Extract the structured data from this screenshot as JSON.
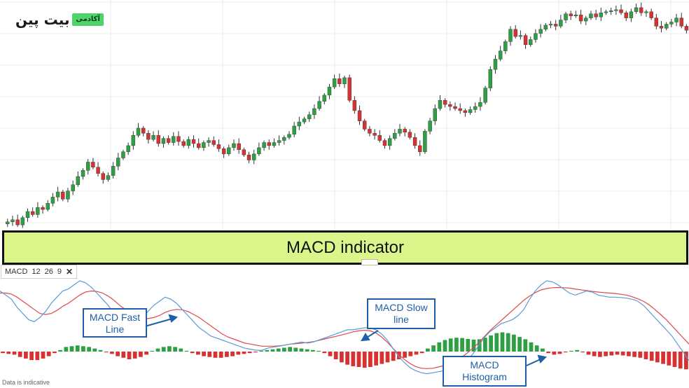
{
  "brand": {
    "name": "بیت پین",
    "badge": "آکادمی"
  },
  "banner": {
    "label": "MACD indicator"
  },
  "indicator": {
    "name": "MACD",
    "fast": "12",
    "slow": "26",
    "signal": "9",
    "close": "✕"
  },
  "callouts": {
    "fast_line": "MACD Fast Line",
    "slow_line": "MACD Slow line",
    "histogram": "MACD Histogram"
  },
  "footer": {
    "note": "Data is indicative"
  },
  "colors": {
    "up": "#2ea043",
    "down": "#d63232",
    "fast": "#5b9bd5",
    "slow": "#e04848",
    "callout": "#1f5fa8",
    "banner": "#dcf58a"
  },
  "chart_data": [
    {
      "type": "candlestick",
      "series": [
        {
          "name": "price",
          "close": [
            400,
            402,
            404,
            399,
            406,
            412,
            409,
            416,
            414,
            420,
            426,
            431,
            424,
            432,
            438,
            446,
            452,
            460,
            455,
            449,
            443,
            447,
            456,
            464,
            470,
            476,
            486,
            493,
            488,
            482,
            486,
            478,
            483,
            479,
            485,
            480,
            476,
            482,
            478,
            474,
            479,
            481,
            477,
            473,
            468,
            474,
            478,
            472,
            467,
            462,
            468,
            474,
            479,
            476,
            479,
            481,
            484,
            487,
            495,
            499,
            502,
            506,
            512,
            519,
            525,
            533,
            541,
            536,
            542,
            520,
            510,
            500,
            492,
            488,
            486,
            481,
            476,
            483,
            488,
            492,
            489,
            484,
            476,
            470,
            490,
            500,
            512,
            520,
            516,
            514,
            512,
            510,
            508,
            511,
            514,
            518,
            532,
            550,
            560,
            568,
            577,
            589,
            582,
            583,
            574,
            579,
            585,
            589,
            593,
            594,
            592,
            598,
            604,
            602,
            603,
            597,
            600,
            604,
            601,
            605,
            606,
            607,
            608,
            605,
            600,
            606,
            610,
            605,
            606,
            600,
            592,
            590,
            594,
            596,
            600,
            592,
            588
          ]
        }
      ]
    },
    {
      "type": "line",
      "series": [
        {
          "name": "fast",
          "values": [
            0.8,
            0.6,
            0.4,
            0.0,
            -0.3,
            -0.6,
            -0.7,
            -0.5,
            -0.2,
            0.2,
            0.5,
            0.8,
            0.9,
            1.1,
            1.3,
            1.2,
            1.0,
            0.7,
            0.4,
            0.1,
            -0.3,
            -0.6,
            -0.8,
            -0.9,
            -0.8,
            -0.5,
            -0.2,
            0.1,
            0.3,
            0.5,
            0.4,
            0.2,
            -0.1,
            -0.4,
            -0.7,
            -1.0,
            -1.2,
            -1.4,
            -1.5,
            -1.6,
            -1.7,
            -1.8,
            -1.9,
            -2.0,
            -2.05,
            -2.1,
            -2.1,
            -2.0,
            -1.95,
            -1.9,
            -1.85,
            -1.8,
            -1.75,
            -1.7,
            -1.75,
            -1.7,
            -1.6,
            -1.5,
            -1.4,
            -1.3,
            -1.2,
            -1.1,
            -1.1,
            -1.05,
            -1.0,
            -1.0,
            -1.1,
            -1.3,
            -1.6,
            -2.0,
            -2.4,
            -2.7,
            -2.95,
            -3.1,
            -3.2,
            -3.25,
            -3.2,
            -3.15,
            -3.1,
            -3.0,
            -2.9,
            -2.8,
            -2.6,
            -2.3,
            -1.9,
            -1.5,
            -1.2,
            -1.0,
            -0.8,
            -0.7,
            -0.6,
            -0.4,
            -0.1,
            0.4,
            0.8,
            1.1,
            1.3,
            1.25,
            1.1,
            0.9,
            0.7,
            0.6,
            0.7,
            0.8,
            0.75,
            0.6,
            0.55,
            0.5,
            0.5,
            0.48,
            0.45,
            0.4,
            0.3,
            0.1,
            -0.2,
            -0.5,
            -0.8,
            -1.1,
            -1.4,
            -1.8,
            -2.2,
            -2.6
          ]
        },
        {
          "name": "slow",
          "values": [
            0.7,
            0.7,
            0.65,
            0.5,
            0.3,
            0.1,
            -0.1,
            -0.3,
            -0.35,
            -0.3,
            -0.15,
            0.05,
            0.2,
            0.4,
            0.6,
            0.75,
            0.8,
            0.78,
            0.7,
            0.55,
            0.35,
            0.1,
            -0.1,
            -0.3,
            -0.45,
            -0.55,
            -0.55,
            -0.5,
            -0.4,
            -0.25,
            -0.15,
            -0.1,
            -0.12,
            -0.2,
            -0.35,
            -0.5,
            -0.7,
            -0.9,
            -1.1,
            -1.3,
            -1.45,
            -1.55,
            -1.65,
            -1.75,
            -1.8,
            -1.85,
            -1.9,
            -1.9,
            -1.9,
            -1.88,
            -1.85,
            -1.8,
            -1.78,
            -1.75,
            -1.72,
            -1.68,
            -1.62,
            -1.55,
            -1.48,
            -1.42,
            -1.35,
            -1.28,
            -1.2,
            -1.15,
            -1.12,
            -1.15,
            -1.25,
            -1.45,
            -1.7,
            -2.0,
            -2.3,
            -2.55,
            -2.75,
            -2.9,
            -2.98,
            -3.0,
            -2.98,
            -2.92,
            -2.85,
            -2.75,
            -2.6,
            -2.45,
            -2.25,
            -2.0,
            -1.75,
            -1.45,
            -1.15,
            -0.9,
            -0.65,
            -0.4,
            -0.15,
            0.1,
            0.35,
            0.55,
            0.72,
            0.85,
            0.92,
            0.96,
            0.97,
            0.96,
            0.94,
            0.9,
            0.86,
            0.82,
            0.78,
            0.75,
            0.72,
            0.7,
            0.68,
            0.64,
            0.6,
            0.52,
            0.42,
            0.3,
            0.12,
            -0.1,
            -0.35,
            -0.6,
            -0.9,
            -1.2,
            -1.5,
            -1.8
          ]
        }
      ]
    },
    {
      "type": "bar",
      "series": [
        {
          "name": "histogram",
          "values": [
            -0.1,
            -0.15,
            -0.2,
            -0.35,
            -0.45,
            -0.55,
            -0.55,
            -0.45,
            -0.3,
            -0.1,
            0.1,
            0.3,
            0.35,
            0.4,
            0.35,
            0.3,
            0.2,
            0.1,
            -0.05,
            -0.15,
            -0.3,
            -0.4,
            -0.5,
            -0.45,
            -0.35,
            -0.2,
            0.05,
            0.2,
            0.3,
            0.35,
            0.3,
            0.2,
            0.05,
            -0.1,
            -0.2,
            -0.3,
            -0.35,
            -0.4,
            -0.4,
            -0.35,
            -0.3,
            -0.2,
            -0.15,
            -0.1,
            -0.05,
            0.05,
            0.1,
            0.15,
            0.2,
            0.25,
            0.3,
            0.25,
            0.2,
            0.15,
            0.1,
            0.05,
            -0.1,
            -0.3,
            -0.5,
            -0.7,
            -0.85,
            -0.95,
            -1.0,
            -1.05,
            -1.0,
            -0.9,
            -0.8,
            -0.7,
            -0.6,
            -0.5,
            -0.4,
            -0.3,
            -0.2,
            -0.1,
            0.2,
            0.4,
            0.6,
            0.75,
            0.85,
            0.9,
            0.88,
            0.82,
            0.78,
            0.8,
            0.9,
            1.05,
            1.2,
            1.25,
            1.2,
            1.1,
            0.95,
            0.8,
            0.6,
            0.4,
            0.2,
            -0.1,
            -0.2,
            -0.15,
            -0.05,
            0.05,
            0.1,
            -0.05,
            -0.2,
            -0.3,
            -0.35,
            -0.3,
            -0.25,
            -0.2,
            -0.25,
            -0.3,
            -0.35,
            -0.4,
            -0.5,
            -0.6,
            -0.7,
            -0.8,
            -0.9,
            -1.0,
            -1.1,
            -1.15
          ]
        }
      ]
    }
  ]
}
